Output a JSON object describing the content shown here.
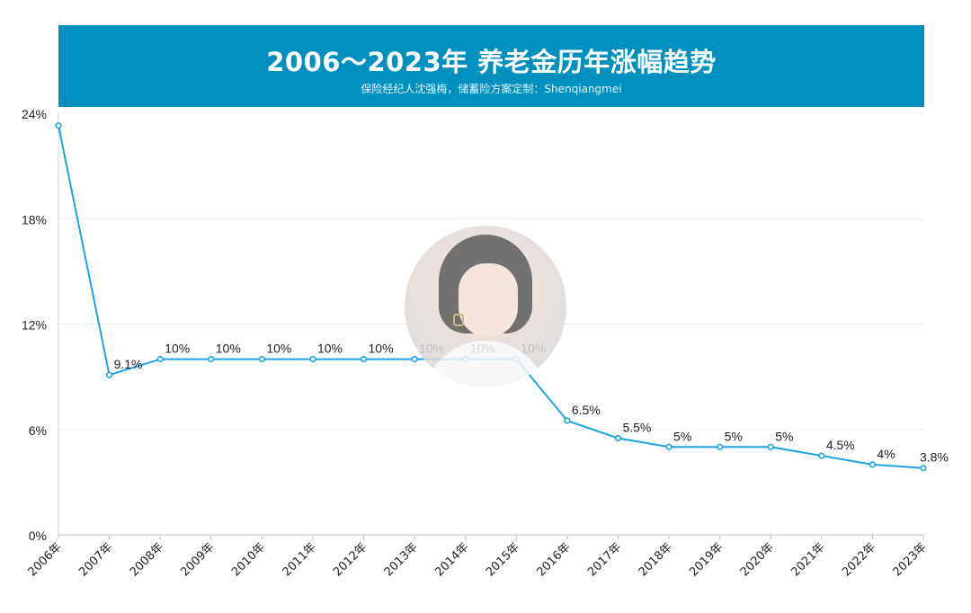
{
  "header": {
    "title": "2006～2023年 养老金历年涨幅趋势",
    "subtitle": "保险经纪人沈强梅，储蓄险方案定制：Shenqiangmei"
  },
  "colors": {
    "banner": "#0090bf",
    "line": "#1aa3e8",
    "grid": "#ececec",
    "text": "#222222"
  },
  "chart_data": {
    "type": "line",
    "title": "2006～2023年 养老金历年涨幅趋势",
    "xlabel": "",
    "ylabel": "",
    "categories": [
      "2006年",
      "2007年",
      "2008年",
      "2009年",
      "2010年",
      "2011年",
      "2012年",
      "2013年",
      "2014年",
      "2015年",
      "2016年",
      "2017年",
      "2018年",
      "2019年",
      "2020年",
      "2021年",
      "2022年",
      "2023年"
    ],
    "series": [
      {
        "values": [
          23.3,
          9.1,
          10,
          10,
          10,
          10,
          10,
          10,
          10,
          10,
          6.5,
          5.5,
          5,
          5,
          5,
          4.5,
          4,
          3.8
        ],
        "labels": [
          "",
          "9.1%",
          "10%",
          "10%",
          "10%",
          "10%",
          "10%",
          "10%",
          "10%",
          "10%",
          "6.5%",
          "5.5%",
          "5%",
          "5%",
          "5%",
          "4.5%",
          "4%",
          "3.8%"
        ]
      }
    ],
    "ylim": [
      0,
      24
    ],
    "yticks": [
      0,
      6,
      12,
      18,
      24
    ],
    "ytick_labels": [
      "0%",
      "6%",
      "12%",
      "18%",
      "24%"
    ],
    "grid": true,
    "legend": "none"
  }
}
